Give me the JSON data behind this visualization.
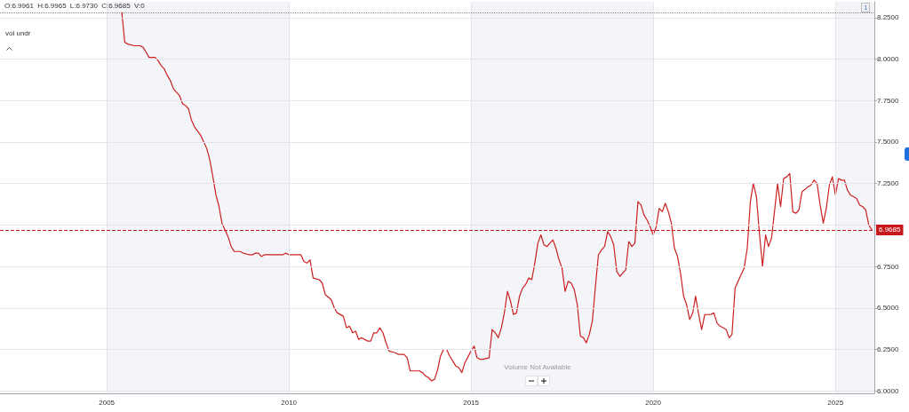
{
  "chart_data": {
    "type": "line",
    "color": "#cc1f1f",
    "marker": "none",
    "grid": true,
    "x": [
      "2005-06",
      "2005-07",
      "2005-08",
      "2005-10",
      "2005-12",
      "2006-01",
      "2006-02",
      "2006-03",
      "2006-04",
      "2006-05",
      "2006-06",
      "2006-07",
      "2006-08",
      "2006-09",
      "2006-10",
      "2006-11",
      "2007-01",
      "2007-02",
      "2007-03",
      "2007-04",
      "2007-05",
      "2007-06",
      "2007-08",
      "2007-09",
      "2007-10",
      "2007-11",
      "2007-12",
      "2008-01",
      "2008-02",
      "2008-03",
      "2008-04",
      "2008-05",
      "2008-06",
      "2008-07",
      "2008-09",
      "2008-10",
      "2008-12",
      "2009-01",
      "2009-02",
      "2009-03",
      "2009-04",
      "2009-05",
      "2009-08",
      "2009-10",
      "2009-11",
      "2009-12",
      "2010-01",
      "2010-03",
      "2010-05",
      "2010-06",
      "2010-07",
      "2010-08",
      "2010-09",
      "2010-11",
      "2010-12",
      "2011-01",
      "2011-03",
      "2011-04",
      "2011-05",
      "2011-07",
      "2011-08",
      "2011-09",
      "2011-10",
      "2011-11",
      "2011-12",
      "2012-01",
      "2012-03",
      "2012-04",
      "2012-05",
      "2012-06",
      "2012-07",
      "2012-08",
      "2012-09",
      "2012-10",
      "2012-12",
      "2013-01",
      "2013-03",
      "2013-04",
      "2013-05",
      "2013-07",
      "2013-08",
      "2013-09",
      "2013-10",
      "2013-11",
      "2013-12",
      "2014-01",
      "2014-02",
      "2014-03",
      "2014-04",
      "2014-05",
      "2014-06",
      "2014-08",
      "2014-09",
      "2014-10",
      "2014-11",
      "2015-01",
      "2015-02",
      "2015-03",
      "2015-04",
      "2015-05",
      "2015-07",
      "2015-08",
      "2015-09",
      "2015-10",
      "2015-11",
      "2015-12",
      "2016-01",
      "2016-02",
      "2016-03",
      "2016-04",
      "2016-05",
      "2016-06",
      "2016-07",
      "2016-08",
      "2016-09",
      "2016-10",
      "2016-11",
      "2016-12",
      "2017-01",
      "2017-02",
      "2017-03",
      "2017-04",
      "2017-05",
      "2017-06",
      "2017-07",
      "2017-08",
      "2017-09",
      "2017-10",
      "2017-11",
      "2017-12",
      "2018-01",
      "2018-02",
      "2018-03",
      "2018-04",
      "2018-05",
      "2018-06",
      "2018-07",
      "2018-08",
      "2018-09",
      "2018-10",
      "2018-11",
      "2018-12",
      "2019-01",
      "2019-02",
      "2019-03",
      "2019-04",
      "2019-05",
      "2019-06",
      "2019-07",
      "2019-08",
      "2019-09",
      "2019-10",
      "2019-11",
      "2019-12",
      "2020-01",
      "2020-02",
      "2020-03",
      "2020-04",
      "2020-05",
      "2020-06",
      "2020-07",
      "2020-08",
      "2020-09",
      "2020-10",
      "2020-11",
      "2020-12",
      "2021-01",
      "2021-02",
      "2021-03",
      "2021-04",
      "2021-05",
      "2021-06",
      "2021-08",
      "2021-09",
      "2021-10",
      "2021-11",
      "2022-01",
      "2022-02",
      "2022-03",
      "2022-04",
      "2022-05",
      "2022-07",
      "2022-08",
      "2022-09",
      "2022-10",
      "2022-11",
      "2022-12",
      "2023-01",
      "2023-02",
      "2023-03",
      "2023-04",
      "2023-05",
      "2023-06",
      "2023-07",
      "2023-08",
      "2023-09",
      "2023-10",
      "2023-11",
      "2023-12",
      "2024-01",
      "2024-02",
      "2024-04",
      "2024-05",
      "2024-06",
      "2024-07",
      "2024-08",
      "2024-09",
      "2024-10",
      "2024-11",
      "2024-12",
      "2025-01",
      "2025-02",
      "2025-03",
      "2025-04",
      "2025-05",
      "2025-06",
      "2025-07",
      "2025-08",
      "2025-09",
      "2025-10",
      "2025-11",
      "2025-12",
      "2026-01"
    ],
    "values": [
      8.28,
      8.1,
      8.09,
      8.08,
      8.08,
      8.07,
      8.04,
      8.01,
      8.01,
      8.01,
      7.99,
      7.96,
      7.94,
      7.9,
      7.87,
      7.82,
      7.78,
      7.73,
      7.72,
      7.7,
      7.63,
      7.59,
      7.54,
      7.5,
      7.46,
      7.39,
      7.29,
      7.18,
      7.11,
      7.01,
      6.97,
      6.93,
      6.87,
      6.84,
      6.84,
      6.83,
      6.82,
      6.82,
      6.83,
      6.83,
      6.81,
      6.82,
      6.82,
      6.82,
      6.82,
      6.83,
      6.82,
      6.82,
      6.82,
      6.78,
      6.77,
      6.79,
      6.68,
      6.67,
      6.65,
      6.58,
      6.55,
      6.5,
      6.47,
      6.45,
      6.38,
      6.39,
      6.35,
      6.36,
      6.31,
      6.32,
      6.3,
      6.3,
      6.35,
      6.35,
      6.38,
      6.35,
      6.29,
      6.24,
      6.23,
      6.22,
      6.22,
      6.2,
      6.12,
      6.12,
      6.12,
      6.11,
      6.09,
      6.08,
      6.06,
      6.07,
      6.13,
      6.21,
      6.25,
      6.25,
      6.21,
      6.15,
      6.14,
      6.11,
      6.17,
      6.24,
      6.27,
      6.2,
      6.19,
      6.19,
      6.2,
      6.37,
      6.35,
      6.32,
      6.38,
      6.47,
      6.6,
      6.54,
      6.46,
      6.47,
      6.57,
      6.62,
      6.64,
      6.68,
      6.67,
      6.77,
      6.89,
      6.94,
      6.88,
      6.87,
      6.89,
      6.91,
      6.86,
      6.79,
      6.74,
      6.6,
      6.66,
      6.65,
      6.61,
      6.52,
      6.33,
      6.32,
      6.29,
      6.34,
      6.42,
      6.63,
      6.82,
      6.85,
      6.87,
      6.96,
      6.93,
      6.88,
      6.72,
      6.69,
      6.71,
      6.73,
      6.9,
      6.87,
      6.89,
      7.14,
      7.12,
      7.06,
      7.03,
      6.99,
      6.94,
      6.99,
      7.1,
      7.08,
      7.13,
      7.08,
      7.01,
      6.86,
      6.81,
      6.71,
      6.57,
      6.52,
      6.43,
      6.47,
      6.57,
      6.46,
      6.37,
      6.46,
      6.46,
      6.47,
      6.41,
      6.39,
      6.37,
      6.32,
      6.34,
      6.62,
      6.66,
      6.74,
      6.86,
      7.14,
      7.25,
      7.17,
      6.95,
      6.75,
      6.94,
      6.87,
      6.92,
      7.08,
      7.25,
      7.11,
      7.28,
      7.29,
      7.31,
      7.08,
      7.07,
      7.09,
      7.2,
      7.23,
      7.24,
      7.27,
      7.25,
      7.12,
      7.01,
      7.1,
      7.24,
      7.29,
      7.18,
      7.28,
      7.27,
      7.27,
      7.21,
      7.18,
      7.17,
      7.16,
      7.12,
      7.11,
      7.09,
      7.0,
      6.97
    ],
    "xlim": [
      "2002-01-27",
      "2026-01-26"
    ],
    "xticks": [
      "2005",
      "2010",
      "2015",
      "2020",
      "2025"
    ],
    "ylim": [
      5.985,
      8.345
    ],
    "yticks": [
      {
        "value": 6,
        "label": "6.0000"
      },
      {
        "value": 6.25,
        "label": "6.2500"
      },
      {
        "value": 6.5,
        "label": "6.5000"
      },
      {
        "value": 6.75,
        "label": "6.7500"
      },
      {
        "value": 7,
        "label": null
      },
      {
        "value": 7.25,
        "label": "7.2500"
      },
      {
        "value": 7.5,
        "label": "7.5000"
      },
      {
        "value": 7.75,
        "label": "7.7500"
      },
      {
        "value": 8,
        "label": "8.0000"
      },
      {
        "value": 8.25,
        "label": "8.2500"
      }
    ],
    "bands": [
      {
        "axis": "x",
        "from": "2005",
        "to": "2010",
        "color": "#f3f5f9"
      },
      {
        "axis": "x",
        "from": "2015",
        "to": "2020",
        "color": "#f3f5f9"
      },
      {
        "axis": "x",
        "from": "2025",
        "to": "2026-01-26",
        "color": "#f3f5f9"
      }
    ],
    "ref_lines": [
      {
        "axis": "y",
        "value": 6.9685,
        "label": "6.9685",
        "color": "#c8161d",
        "line_style": "dashed"
      },
      {
        "axis": "y",
        "value": 8.28,
        "color": "#8a8a8a",
        "line_style": "dotted"
      }
    ],
    "annotations": [
      "O:6.9961 H:6.9965 L:6.9730 C:6.9685 V:0",
      "vol undr",
      "Volume Not Available",
      "1"
    ]
  }
}
